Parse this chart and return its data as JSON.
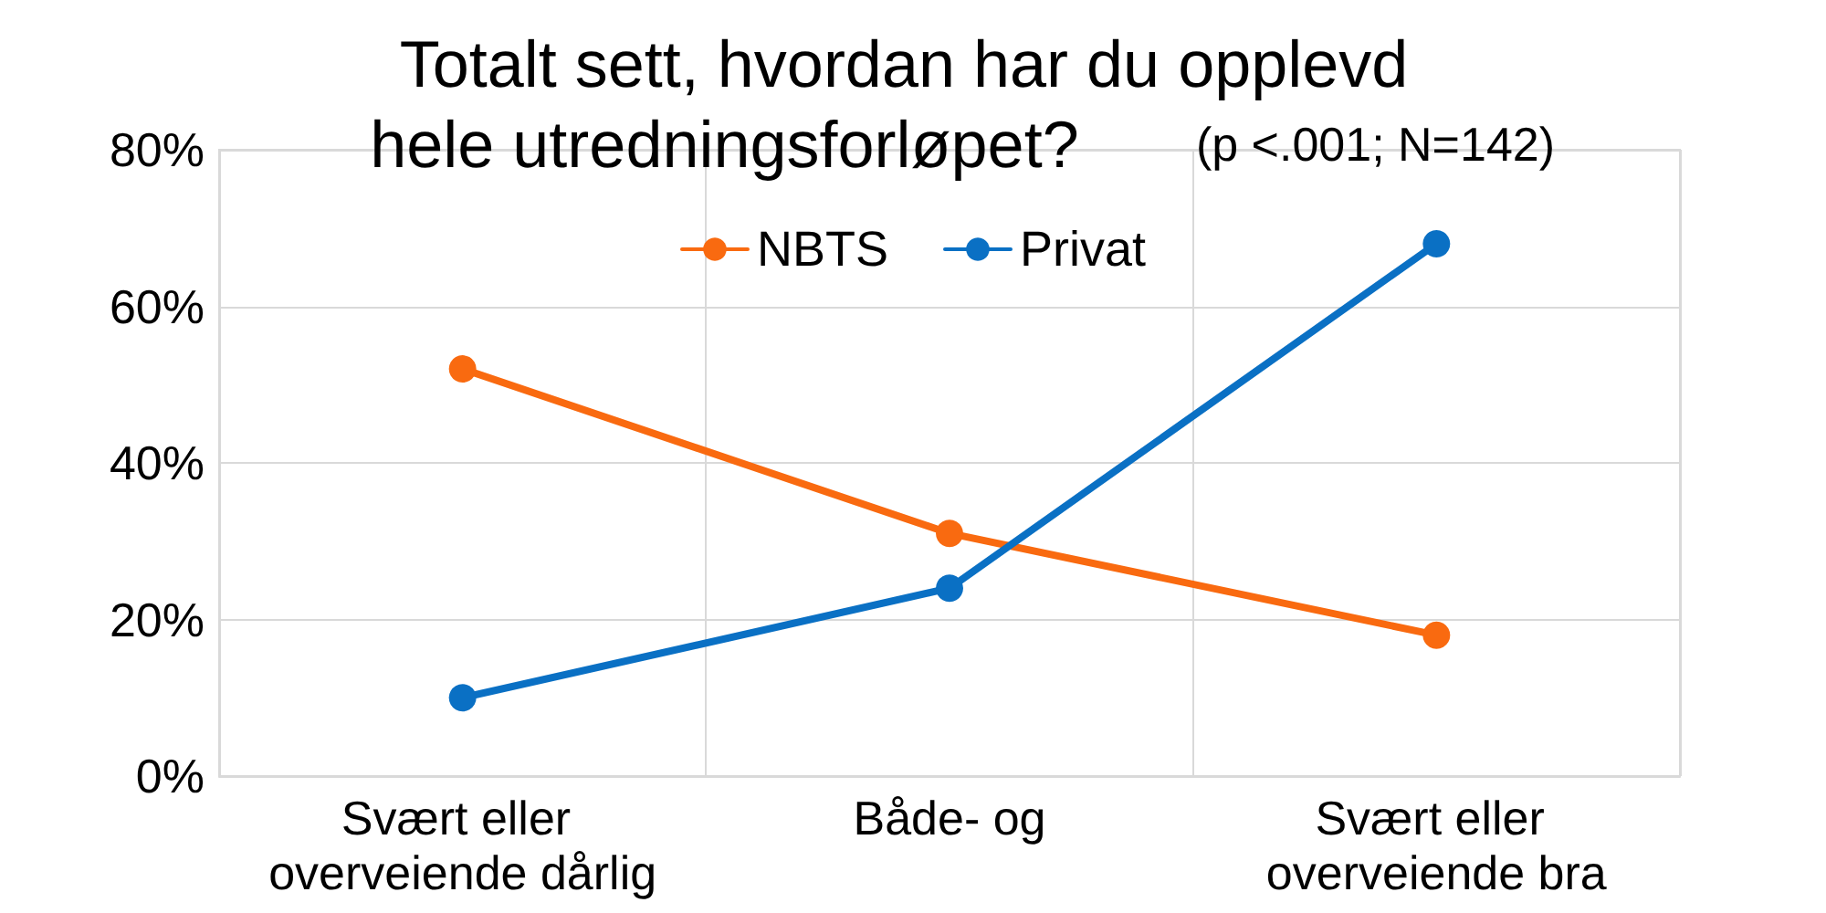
{
  "chart_data": {
    "type": "line",
    "title": "Totalt sett, hvordan har du opplevd hele utredningsforløpet?",
    "subtitle": "(p <.001; N=142)",
    "categories": [
      "Svært eller overveiende dårlig",
      "Både- og",
      "Svært eller overveiende bra"
    ],
    "series": [
      {
        "name": "NBTS",
        "color": "#f96a10",
        "values": [
          52,
          31,
          18
        ]
      },
      {
        "name": "Privat",
        "color": "#0a70c4",
        "values": [
          10,
          24,
          68
        ]
      }
    ],
    "ylim": [
      0,
      80
    ],
    "yticks": [
      {
        "value": 0,
        "label": "0%"
      },
      {
        "value": 20,
        "label": "20%"
      },
      {
        "value": 40,
        "label": "40%"
      },
      {
        "value": 60,
        "label": "60%"
      },
      {
        "value": 80,
        "label": "80%"
      }
    ],
    "grid": true,
    "legend": "top",
    "marker": "circle",
    "line_style": "solid"
  }
}
